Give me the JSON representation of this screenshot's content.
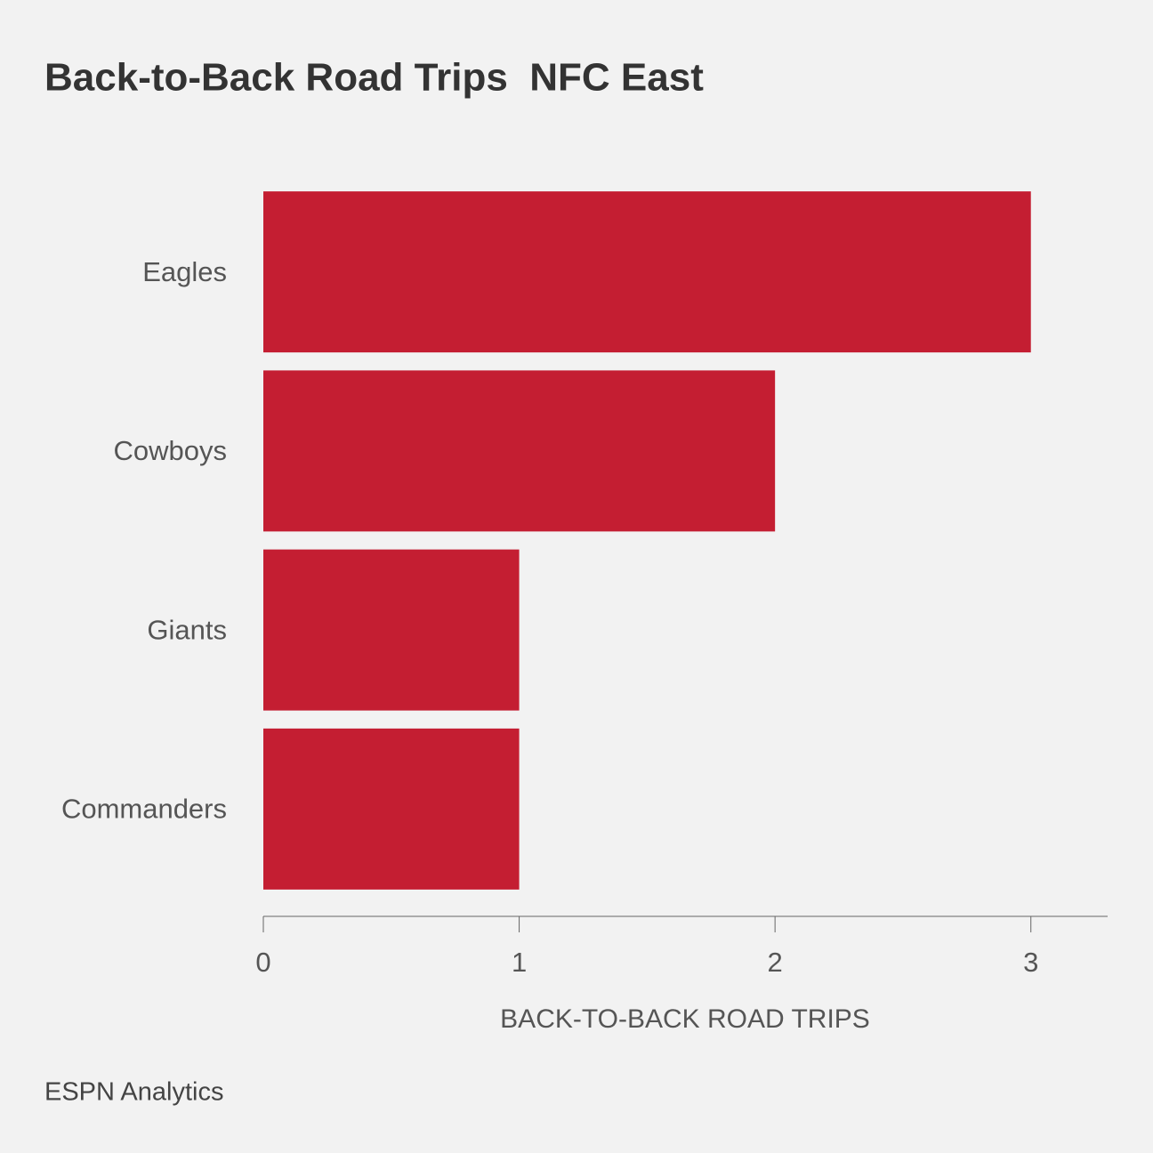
{
  "chart_data": {
    "type": "barh",
    "title": "Back-to-Back Road Trips  NFC East",
    "categories": [
      "Eagles",
      "Cowboys",
      "Giants",
      "Commanders"
    ],
    "values": [
      3,
      2,
      1,
      1
    ],
    "color": "#c41e32",
    "xlim": [
      0,
      3.3
    ],
    "xticks": [
      0,
      1,
      2,
      3
    ],
    "x_label": "BACK-TO-BACK ROAD TRIPS",
    "source": "ESPN Analytics"
  }
}
